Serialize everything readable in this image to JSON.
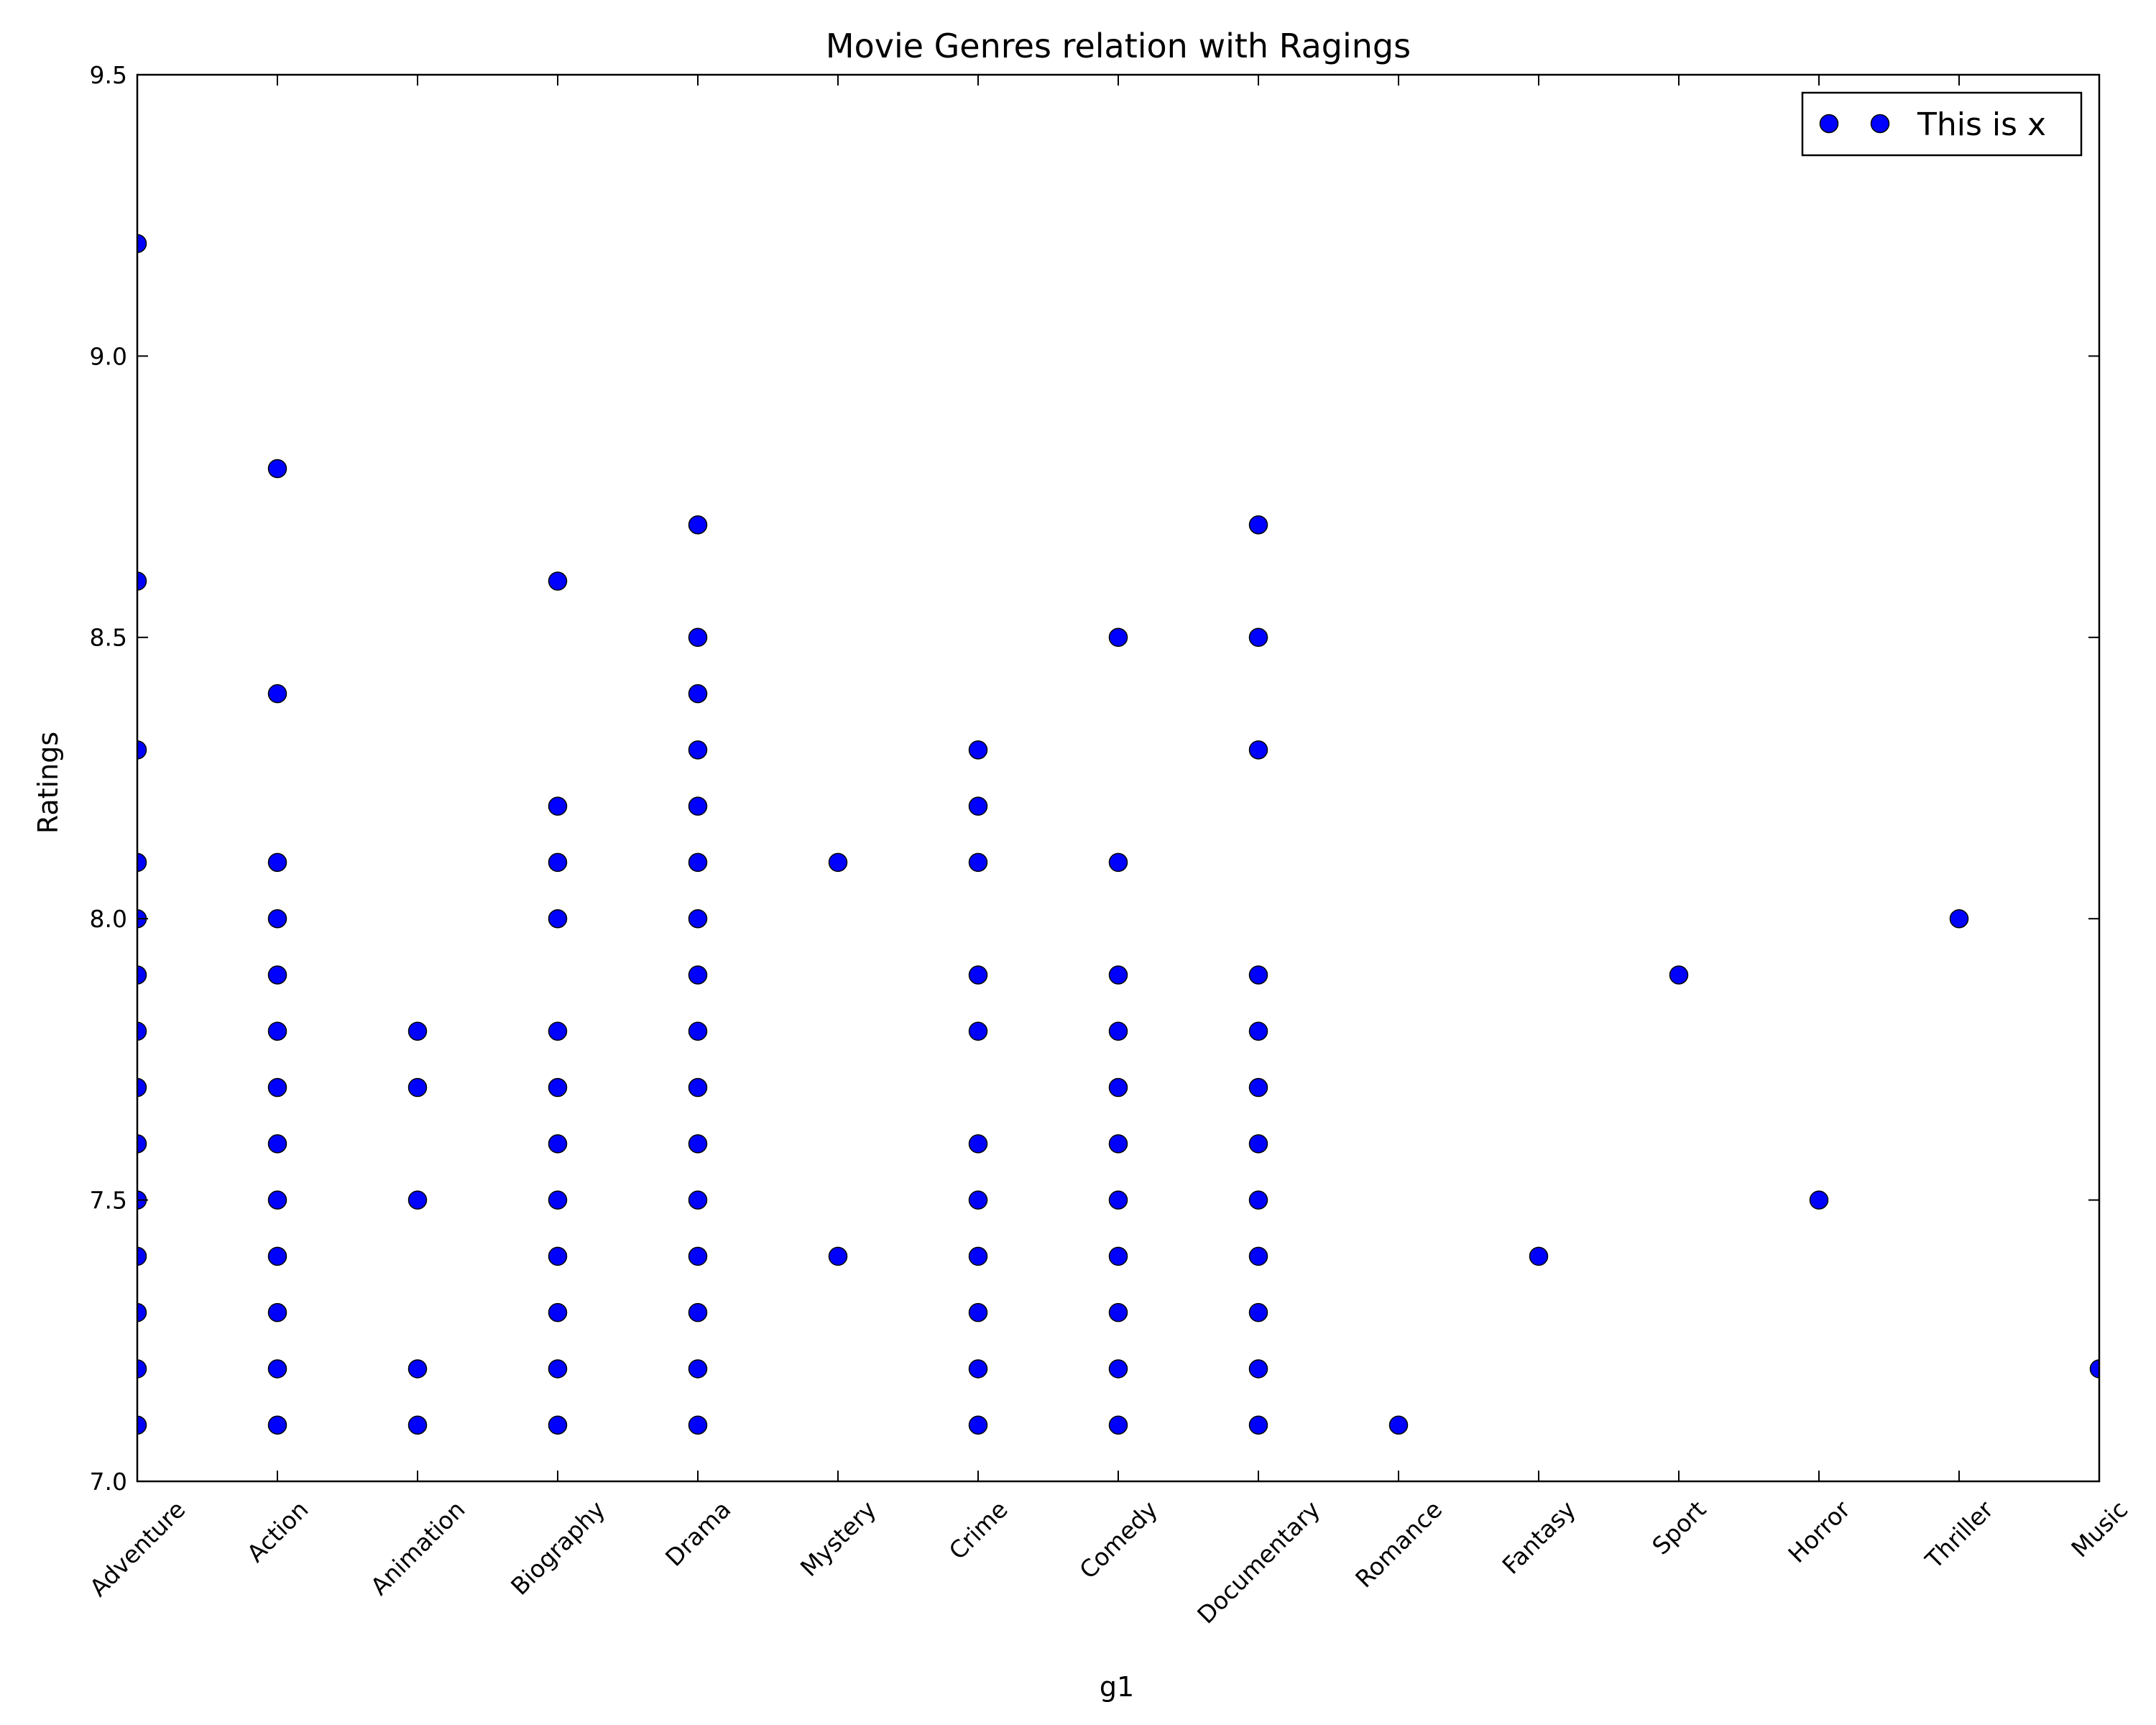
{
  "chart_data": {
    "type": "scatter",
    "title": "Movie Genres relation with Ragings",
    "x_label": "g1",
    "y_label": "Ratings",
    "categories": [
      "Adventure",
      "Action",
      "Animation",
      "Biography",
      "Drama",
      "Mystery",
      "Crime",
      "Comedy",
      "Documentary",
      "Romance",
      "Fantasy",
      "Sport",
      "Horror",
      "Thriller",
      "Music"
    ],
    "series": [
      {
        "name": "This is x",
        "color": "#0000ff",
        "values": [
          [
            9.2,
            8.6,
            8.3,
            8.1,
            8.0,
            7.9,
            7.8,
            7.7,
            7.6,
            7.5,
            7.4,
            7.3,
            7.2,
            7.1
          ],
          [
            8.8,
            8.4,
            8.1,
            8.0,
            7.9,
            7.8,
            7.7,
            7.6,
            7.5,
            7.4,
            7.3,
            7.2,
            7.1
          ],
          [
            7.8,
            7.7,
            7.5,
            7.2,
            7.1
          ],
          [
            8.6,
            8.2,
            8.1,
            8.0,
            7.8,
            7.7,
            7.6,
            7.5,
            7.4,
            7.3,
            7.2,
            7.1
          ],
          [
            8.7,
            8.5,
            8.4,
            8.3,
            8.2,
            8.1,
            8.0,
            7.9,
            7.8,
            7.7,
            7.6,
            7.5,
            7.4,
            7.3,
            7.2,
            7.1
          ],
          [
            8.1,
            7.4
          ],
          [
            8.3,
            8.2,
            8.1,
            7.9,
            7.8,
            7.6,
            7.5,
            7.4,
            7.3,
            7.2,
            7.1
          ],
          [
            8.5,
            8.1,
            7.9,
            7.8,
            7.7,
            7.6,
            7.5,
            7.4,
            7.3,
            7.2,
            7.1
          ],
          [
            8.7,
            8.5,
            8.3,
            7.9,
            7.8,
            7.7,
            7.6,
            7.5,
            7.4,
            7.3,
            7.2,
            7.1
          ],
          [
            7.1
          ],
          [
            7.4
          ],
          [
            7.9
          ],
          [
            7.5
          ],
          [
            8.0
          ],
          [
            7.2
          ]
        ]
      }
    ],
    "ylim": [
      7.0,
      9.5
    ],
    "yticks": [
      {
        "value": 7,
        "label": "7.0"
      },
      7.5,
      {
        "value": 8,
        "label": "8.0"
      },
      8.5,
      {
        "value": 9,
        "label": "9.0"
      },
      9.5
    ],
    "grid": false,
    "legend": "upper right"
  }
}
